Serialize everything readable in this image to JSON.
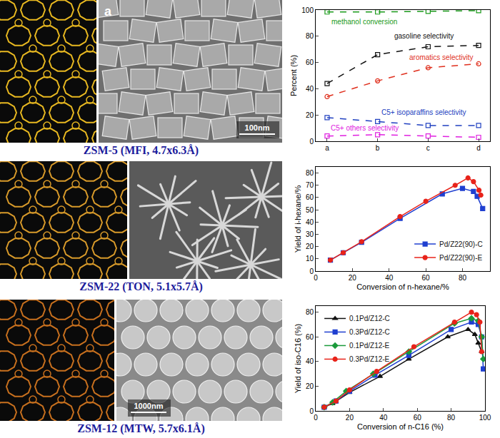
{
  "panels": [
    {
      "caption": "ZSM-5 (MFI, 4.7x6.3Å)",
      "sem_letter": "a",
      "sem_scale_bar": "100nm"
    },
    {
      "caption": "ZSM-22 (TON, 5.1x5.7Å)"
    },
    {
      "caption": "ZSM-12 (MTW, 5.7x6.1Å)",
      "sem_scale_bar": "1000nm"
    }
  ],
  "chart_data": [
    {
      "type": "line",
      "ylabel": "Percent (%)",
      "categories": [
        "a",
        "b",
        "c",
        "d"
      ],
      "ylim": [
        0,
        100
      ],
      "yticks": [
        0,
        20,
        40,
        60,
        80,
        100
      ],
      "grid": false,
      "line_style": "dash",
      "series": [
        {
          "name": "methanol conversion",
          "color": "#1a9a1a",
          "marker": "square-open",
          "values": [
            98.5,
            98.5,
            99,
            99.5
          ]
        },
        {
          "name": "gasoline selectivity",
          "color": "#111111",
          "marker": "square-open",
          "values": [
            44,
            66,
            72,
            73
          ]
        },
        {
          "name": "aromatics selectivity",
          "color": "#e0301e",
          "marker": "circle-open",
          "values": [
            34,
            46,
            56,
            59
          ]
        },
        {
          "name": "C5+ isoparaffins selectivity",
          "color": "#2040c0",
          "marker": "square-open",
          "values": [
            18,
            15,
            12,
            12
          ]
        },
        {
          "name": "C5+ others selectivity",
          "color": "#e020e0",
          "marker": "square-open",
          "values": [
            4,
            5,
            4,
            3
          ]
        }
      ]
    },
    {
      "type": "line",
      "xlabel": "Conversion of n-hexane/%",
      "ylabel": "Yield of i-hexane/%",
      "xlim": [
        0,
        95
      ],
      "xticks": [
        0,
        20,
        40,
        60,
        80
      ],
      "ylim": [
        0,
        85
      ],
      "yticks": [
        0,
        10,
        20,
        30,
        40,
        50,
        60,
        70,
        80
      ],
      "grid": false,
      "legend": "bottom right",
      "line_style": "solid",
      "series": [
        {
          "name": "Pd/Z22(90)-C",
          "color": "#1f3fd0",
          "marker": "square",
          "x": [
            8,
            15,
            25,
            46,
            69,
            80,
            86,
            88,
            91
          ],
          "values": [
            9,
            15,
            23.5,
            43,
            63,
            67.5,
            65,
            61,
            51
          ]
        },
        {
          "name": "Pd/Z22(90)-E",
          "color": "#e8231a",
          "marker": "circle",
          "x": [
            8,
            15,
            25,
            46,
            60,
            76,
            83,
            86,
            89,
            90
          ],
          "values": [
            9,
            15,
            24,
            44.5,
            57,
            70,
            76,
            73,
            66,
            62
          ]
        }
      ]
    },
    {
      "type": "line",
      "xlabel": "Conversion of n-C16 (%)",
      "ylabel": "Yield of iso-C16 (%)",
      "xlim": [
        0,
        100
      ],
      "xticks": [
        0,
        20,
        40,
        60,
        80,
        100
      ],
      "ylim": [
        0,
        85
      ],
      "yticks": [
        0,
        20,
        40,
        60,
        80
      ],
      "grid": false,
      "legend": "top left",
      "line_style": "solid",
      "series": [
        {
          "name": "0.1Pd/Z12-C",
          "color": "#111111",
          "marker": "triangle-up",
          "x": [
            5,
            10,
            20,
            38,
            55,
            78,
            90,
            94,
            96,
            98
          ],
          "values": [
            3,
            6,
            15,
            28,
            42,
            60,
            66,
            62,
            55,
            48
          ]
        },
        {
          "name": "0.3Pd/Z12-C",
          "color": "#1f3fd0",
          "marker": "square",
          "x": [
            5,
            12,
            20,
            35,
            55,
            80,
            92,
            96,
            98,
            99
          ],
          "values": [
            3,
            8,
            16,
            29,
            45,
            66,
            72,
            70,
            60,
            34
          ]
        },
        {
          "name": "0.1Pd/Z12-E",
          "color": "#1a9a3a",
          "marker": "diamond",
          "x": [
            5,
            10,
            18,
            34,
            55,
            82,
            92,
            96,
            98,
            99
          ],
          "values": [
            3,
            7,
            16,
            30,
            48,
            71,
            75,
            73,
            60,
            42
          ]
        },
        {
          "name": "0.3Pd/Z12-E",
          "color": "#e8231a",
          "marker": "circle",
          "x": [
            5,
            12,
            20,
            36,
            58,
            82,
            92,
            95,
            97,
            98
          ],
          "values": [
            3,
            8,
            17,
            32,
            52,
            72,
            80,
            78,
            72,
            48
          ]
        }
      ]
    }
  ]
}
